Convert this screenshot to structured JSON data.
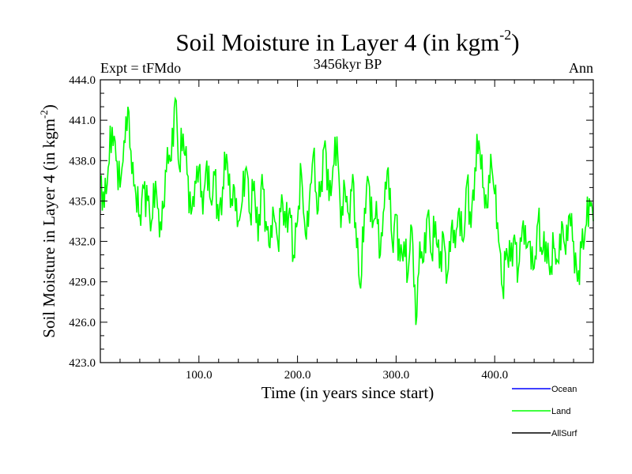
{
  "chart_data": {
    "type": "line",
    "title": "Soil Moisture in Layer 4 (in kgm",
    "title_exponent": "-2",
    "title_suffix": ")",
    "subtitle_left": "Expt = tFMdo",
    "subtitle_center": "3456kyr BP",
    "subtitle_right": "Ann",
    "xlabel": "Time (in years since start)",
    "ylabel": "Soil Moisture in Layer 4 (in kgm",
    "ylabel_exponent": "-2",
    "ylabel_suffix": ")",
    "xlim": [
      0,
      500
    ],
    "ylim": [
      423,
      444
    ],
    "grid": false,
    "legend_position": "bottom-right",
    "x_ticks": [
      {
        "value": 100,
        "label": "100.0"
      },
      {
        "value": 200,
        "label": "200.0"
      },
      {
        "value": 300,
        "label": "300.0"
      },
      {
        "value": 400,
        "label": "400.0"
      }
    ],
    "y_ticks": [
      {
        "value": 423,
        "label": "423.0"
      },
      {
        "value": 426,
        "label": "426.0"
      },
      {
        "value": 429,
        "label": "429.0"
      },
      {
        "value": 432,
        "label": "432.0"
      },
      {
        "value": 435,
        "label": "435.0"
      },
      {
        "value": 438,
        "label": "438.0"
      },
      {
        "value": 441,
        "label": "441.0"
      },
      {
        "value": 444,
        "label": "444.0"
      }
    ],
    "legend": [
      {
        "name": "Ocean",
        "color": "#0000ff"
      },
      {
        "name": "Land",
        "color": "#00ff00"
      },
      {
        "name": "AllSurf",
        "color": "#000000"
      }
    ],
    "series": [
      {
        "name": "Land",
        "color": "#00ff00",
        "x": [
          0,
          4,
          8,
          12,
          16,
          20,
          24,
          28,
          32,
          36,
          40,
          44,
          48,
          52,
          56,
          60,
          64,
          68,
          72,
          76,
          80,
          84,
          88,
          92,
          96,
          100,
          104,
          108,
          112,
          116,
          120,
          124,
          128,
          132,
          136,
          140,
          144,
          148,
          152,
          156,
          160,
          164,
          168,
          172,
          176,
          180,
          184,
          188,
          192,
          196,
          200,
          204,
          208,
          212,
          216,
          220,
          224,
          228,
          232,
          236,
          240,
          244,
          248,
          252,
          256,
          260,
          264,
          268,
          272,
          276,
          280,
          284,
          288,
          292,
          296,
          300,
          304,
          308,
          312,
          316,
          320,
          324,
          328,
          332,
          336,
          340,
          344,
          348,
          352,
          356,
          360,
          364,
          368,
          372,
          376,
          380,
          384,
          388,
          392,
          396,
          400,
          404,
          408,
          412,
          416,
          420,
          424,
          428,
          432,
          436,
          440,
          444,
          448,
          452,
          456,
          460,
          464,
          468,
          472,
          476,
          480,
          484,
          488,
          492,
          496,
          500
        ],
        "values": [
          436.8,
          434.5,
          437.5,
          440.5,
          438.0,
          436.0,
          439.5,
          442.0,
          437.0,
          435.5,
          434.0,
          436.0,
          435.0,
          433.5,
          436.5,
          432.3,
          434.5,
          439.0,
          438.0,
          442.6,
          437.5,
          440.0,
          437.0,
          434.0,
          436.5,
          437.5,
          434.0,
          438.0,
          435.0,
          437.0,
          433.5,
          436.0,
          438.5,
          434.5,
          436.0,
          433.5,
          435.0,
          437.5,
          434.0,
          436.5,
          432.0,
          437.0,
          433.5,
          431.5,
          434.0,
          432.0,
          435.5,
          433.0,
          434.5,
          431.0,
          433.5,
          437.0,
          432.5,
          435.0,
          438.5,
          434.0,
          436.5,
          439.5,
          435.0,
          437.5,
          439.8,
          433.0,
          436.0,
          434.0,
          437.0,
          431.5,
          428.5,
          434.5,
          436.5,
          433.0,
          435.0,
          431.0,
          434.5,
          437.5,
          432.0,
          434.0,
          430.5,
          432.0,
          429.5,
          433.0,
          425.8,
          432.0,
          430.5,
          434.0,
          431.0,
          433.5,
          430.0,
          432.5,
          429.5,
          433.0,
          431.5,
          434.5,
          432.0,
          436.5,
          433.0,
          437.5,
          439.5,
          436.0,
          434.5,
          438.5,
          435.5,
          432.0,
          428.5,
          431.5,
          430.5,
          432.5,
          430.0,
          433.0,
          431.5,
          432.0,
          430.0,
          433.5,
          431.0,
          432.0,
          429.5,
          431.5,
          430.5,
          433.5,
          431.0,
          434.0,
          432.0,
          429.0,
          431.5,
          433.0,
          435.2,
          433.5
        ]
      }
    ]
  }
}
